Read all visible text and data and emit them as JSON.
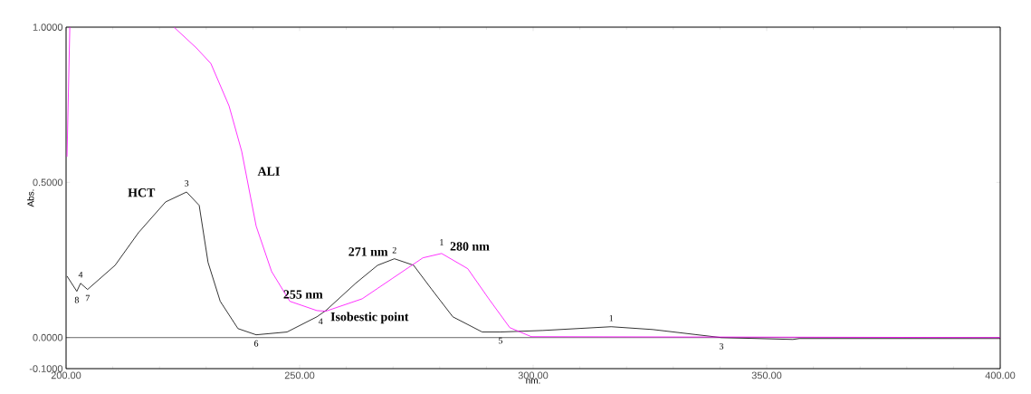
{
  "chart_data": {
    "type": "line",
    "xlabel": "nm.",
    "ylabel": "Abs.",
    "xlim": [
      200,
      400
    ],
    "ylim": [
      -0.1,
      1.0
    ],
    "xticks": [
      {
        "value": 200,
        "label": "200.00"
      },
      {
        "value": 250,
        "label": "250.00"
      },
      {
        "value": 300,
        "label": "300.00"
      },
      {
        "value": 350,
        "label": "350.00"
      },
      {
        "value": 400,
        "label": "400.00"
      }
    ],
    "yticks": [
      {
        "value": -0.1,
        "label": "-0.1000"
      },
      {
        "value": 0,
        "label": "0.0000"
      },
      {
        "value": 0.5,
        "label": "0.5000"
      },
      {
        "value": 1.0,
        "label": "1.0000"
      }
    ],
    "grid": false,
    "legend": false,
    "marker": "none",
    "line_style": "solid",
    "ref_lines": [
      {
        "axis": "y",
        "value": 0,
        "color": "#000000"
      }
    ],
    "series": [
      {
        "name": "HCT",
        "color": "#000000",
        "x": [
          200.2,
          202.3,
          203.1,
          204.6,
          210.5,
          215.5,
          221.3,
          225.8,
          228.5,
          230.4,
          233,
          236.8,
          240.7,
          247.3,
          253.7,
          255.6,
          262,
          266.7,
          270.3,
          274.4,
          278.3,
          282.8,
          289.1,
          293,
          302.1,
          316.7,
          325.6,
          340.3,
          355.6,
          357,
          400
        ],
        "values": [
          0.198,
          0.149,
          0.175,
          0.155,
          0.233,
          0.338,
          0.437,
          0.469,
          0.426,
          0.242,
          0.117,
          0.029,
          0.009,
          0.018,
          0.067,
          0.087,
          0.175,
          0.233,
          0.254,
          0.233,
          0.155,
          0.067,
          0.018,
          0.018,
          0.023,
          0.035,
          0.026,
          0.0,
          -0.006,
          -0.003,
          -0.003
        ]
      },
      {
        "name": "ALI",
        "color": "#ff00ff",
        "x": [
          200.2,
          200.8,
          212,
          223.1,
          227.9,
          231,
          234.9,
          237.6,
          240.7,
          244,
          247.9,
          253.7,
          255.6,
          263.4,
          269.8,
          276.4,
          280.4,
          286,
          290.5,
          295,
          299.6,
          400
        ],
        "values": [
          0.583,
          1.0,
          null,
          1.0,
          0.933,
          0.883,
          0.746,
          0.6,
          0.359,
          0.213,
          0.117,
          0.087,
          0.085,
          0.125,
          0.19,
          0.257,
          0.271,
          0.222,
          0.125,
          0.032,
          0.003,
          0.0
        ]
      }
    ],
    "annotations": [
      {
        "text": "**271 nm**",
        "x": 270.3,
        "y": 0.254
      },
      {
        "text": "**280 nm**",
        "x": 280.4,
        "y": 0.271
      },
      {
        "text": "**255 nm**",
        "x": 255.6,
        "y": 0.087
      },
      {
        "text": "**Isobestic point**",
        "x": 255.6,
        "y": 0.087
      },
      {
        "text": "8",
        "x": 202.3,
        "y": 0.149
      },
      {
        "text": "4",
        "x": 203.1,
        "y": 0.175
      },
      {
        "text": "7",
        "x": 204.6,
        "y": 0.155
      },
      {
        "text": "3",
        "x": 225.8,
        "y": 0.469
      },
      {
        "text": "6",
        "x": 240.7,
        "y": 0.009
      },
      {
        "text": "2",
        "x": 270.3,
        "y": 0.254
      },
      {
        "text": "5",
        "x": 293,
        "y": 0.018
      },
      {
        "text": "1",
        "x": 316.7,
        "y": 0.035
      },
      {
        "text": "4",
        "x": 254.5,
        "y": 0.08
      },
      {
        "text": "1",
        "x": 280.4,
        "y": 0.271
      },
      {
        "text": "3",
        "x": 340.3,
        "y": 0.0
      }
    ]
  }
}
